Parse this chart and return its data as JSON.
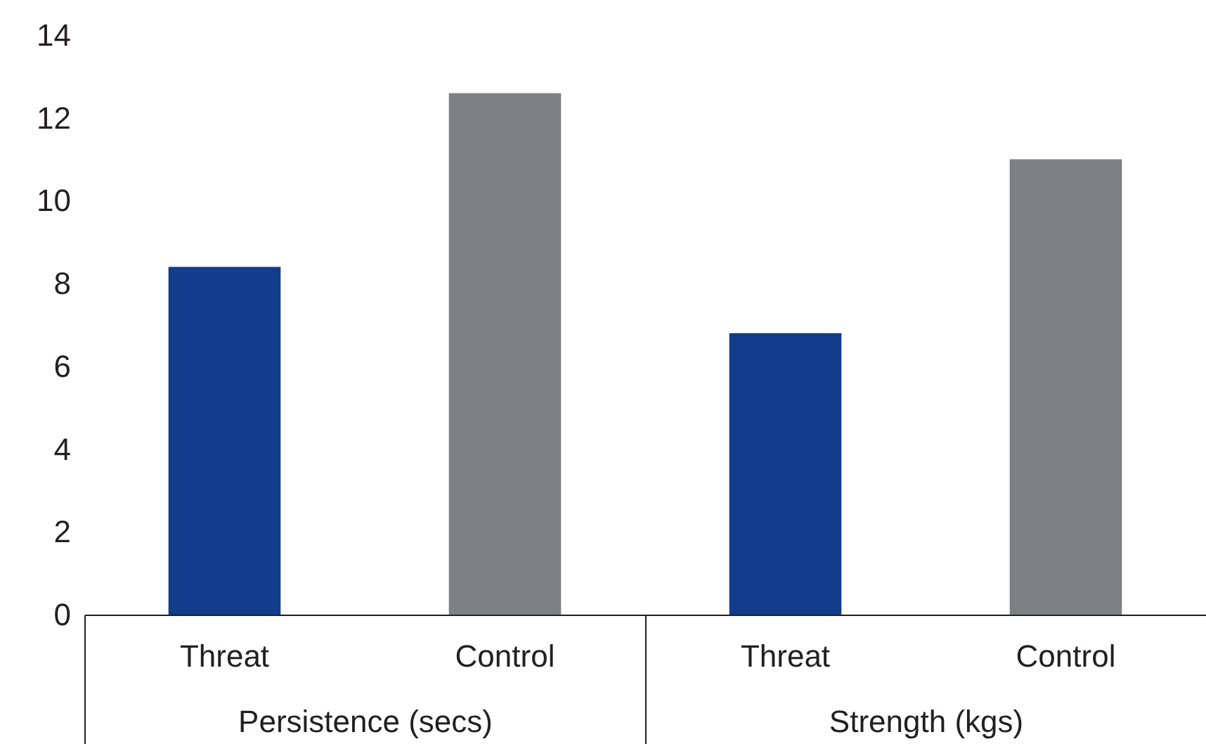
{
  "chart_data": {
    "type": "bar",
    "categories": [
      "Persistence (secs)",
      "Strength (kgs)"
    ],
    "series": [
      {
        "name": "Threat",
        "color": "#123c8c",
        "values": [
          8.4,
          6.8
        ]
      },
      {
        "name": "Control",
        "color": "#7f8084",
        "values": [
          12.6,
          11.0
        ]
      }
    ],
    "ylim": [
      0,
      14
    ],
    "yticks": [
      0,
      2,
      4,
      6,
      8,
      10,
      12,
      14
    ],
    "grid": false,
    "legend": false
  }
}
